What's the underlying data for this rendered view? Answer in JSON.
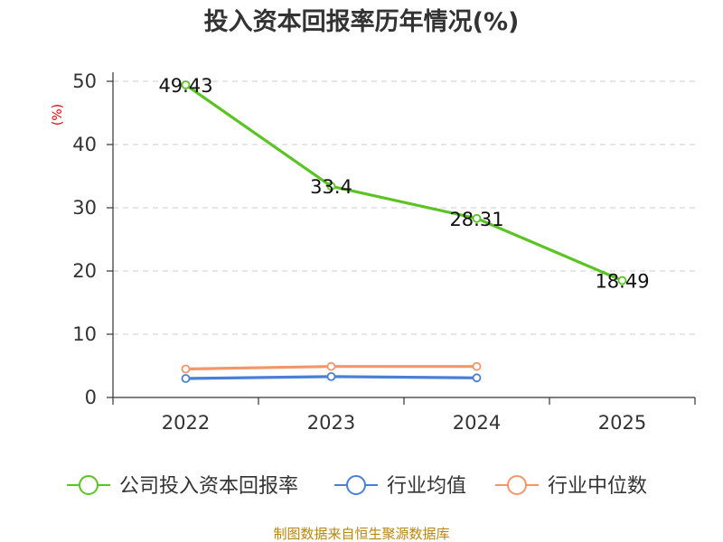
{
  "chart_data": {
    "type": "line",
    "title": "投入资本回报率历年情况(%)",
    "ylabel": "(%)",
    "xlabel": "",
    "categories": [
      "2022",
      "2023",
      "2024",
      "2025"
    ],
    "ylim": [
      0,
      50
    ],
    "yticks": [
      0,
      10,
      20,
      30,
      40,
      50
    ],
    "grid": true,
    "legend_position": "bottom",
    "series": [
      {
        "name": "公司投入资本回报率",
        "color": "#5bc424",
        "values": [
          49.43,
          33.4,
          28.31,
          18.49
        ],
        "labels": [
          "49.43",
          "33.4",
          "28.31",
          "18.49"
        ]
      },
      {
        "name": "行业均值",
        "color": "#4a7fd8",
        "values": [
          3.0,
          3.3,
          3.1,
          null
        ],
        "labels": []
      },
      {
        "name": "行业中位数",
        "color": "#f4956a",
        "values": [
          4.5,
          4.9,
          4.9,
          null
        ],
        "labels": []
      }
    ],
    "source": "制图数据来自恒生聚源数据库"
  }
}
